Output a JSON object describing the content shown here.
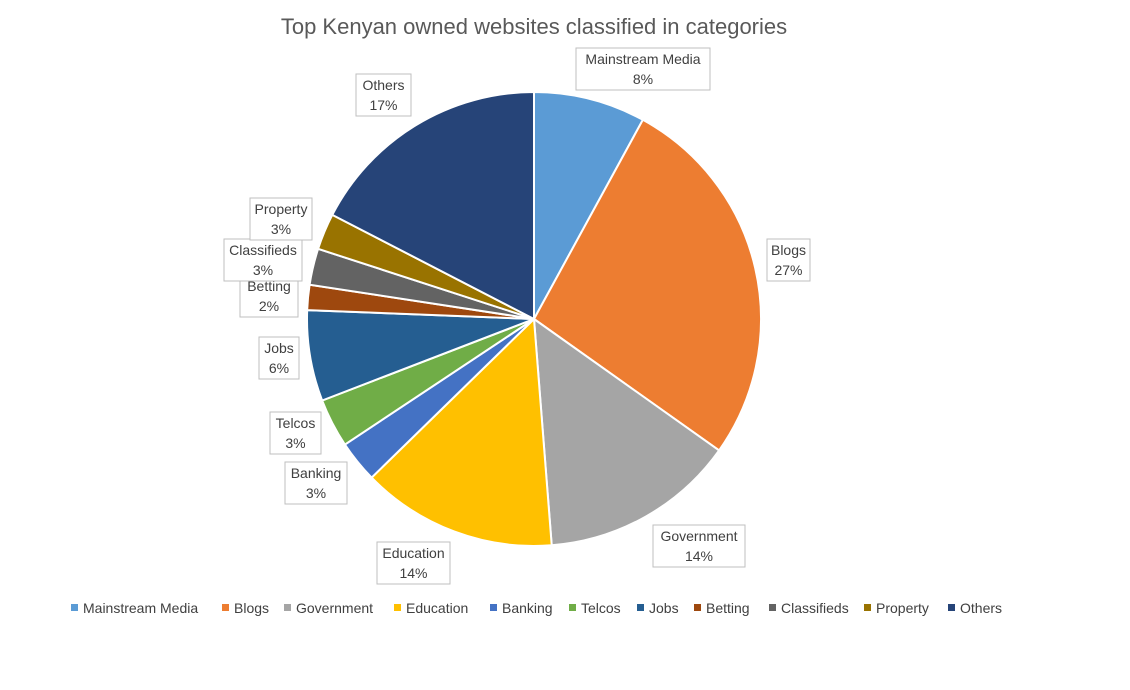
{
  "chart_data": {
    "type": "pie",
    "title": "Top Kenyan owned websites classified in categories",
    "legend_position": "bottom",
    "slices": [
      {
        "name": "Mainstream Media",
        "value": 8,
        "label": "8%",
        "color": "#5B9BD5"
      },
      {
        "name": "Blogs",
        "value": 27,
        "label": "27%",
        "color": "#ED7D31"
      },
      {
        "name": "Government",
        "value": 14,
        "label": "14%",
        "color": "#A5A5A5"
      },
      {
        "name": "Education",
        "value": 14,
        "label": "14%",
        "color": "#FFC000"
      },
      {
        "name": "Banking",
        "value": 3,
        "label": "3%",
        "color": "#4472C4"
      },
      {
        "name": "Telcos",
        "value": 3.5,
        "label": "3%",
        "color": "#70AD47"
      },
      {
        "name": "Jobs",
        "value": 6.5,
        "label": "6%",
        "color": "#255E91"
      },
      {
        "name": "Betting",
        "value": 1.8,
        "label": "2%",
        "color": "#9E480E"
      },
      {
        "name": "Classifieds",
        "value": 2.6,
        "label": "3%",
        "color": "#636363"
      },
      {
        "name": "Property",
        "value": 2.6,
        "label": "3%",
        "color": "#997300"
      },
      {
        "name": "Others",
        "value": 17.5,
        "label": "17%",
        "color": "#264478"
      }
    ]
  }
}
